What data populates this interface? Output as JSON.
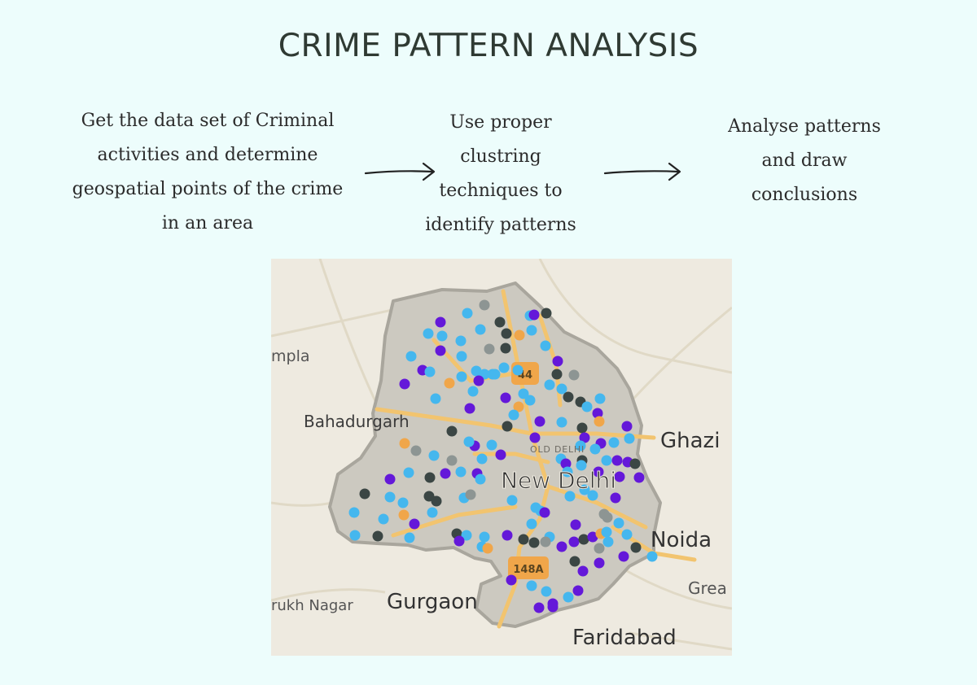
{
  "title": "CRIME PATTERN ANALYSIS",
  "steps": [
    {
      "lines": [
        "Get the data set of Criminal",
        "activities and determine",
        "geospatial points of the crime",
        "in an area"
      ]
    },
    {
      "lines": [
        "Use proper",
        "clustring",
        "techniques to",
        "identify patterns"
      ]
    },
    {
      "lines": [
        "Analyse patterns",
        "and draw",
        "conclusions"
      ]
    }
  ],
  "map": {
    "labels": {
      "new_delhi": "New Delhi",
      "old_delhi": "OLD DELHI",
      "bahadurgarh": "Bahadurgarh",
      "gurgaon": "Gurgaon",
      "faridabad": "Faridabad",
      "noida": "Noida",
      "ghazi": "Ghazi",
      "greater": "Grea",
      "farrukh_nagar": "rukh Nagar",
      "sampla": "mpla"
    },
    "shields": {
      "nh44": "44",
      "nh148a": "148A"
    },
    "point_colors": {
      "purple": "#6418d9",
      "light_blue": "#45b7ee",
      "dark_gray": "#3b4644",
      "gray": "#8d9593",
      "orange": "#f0a64a"
    }
  }
}
